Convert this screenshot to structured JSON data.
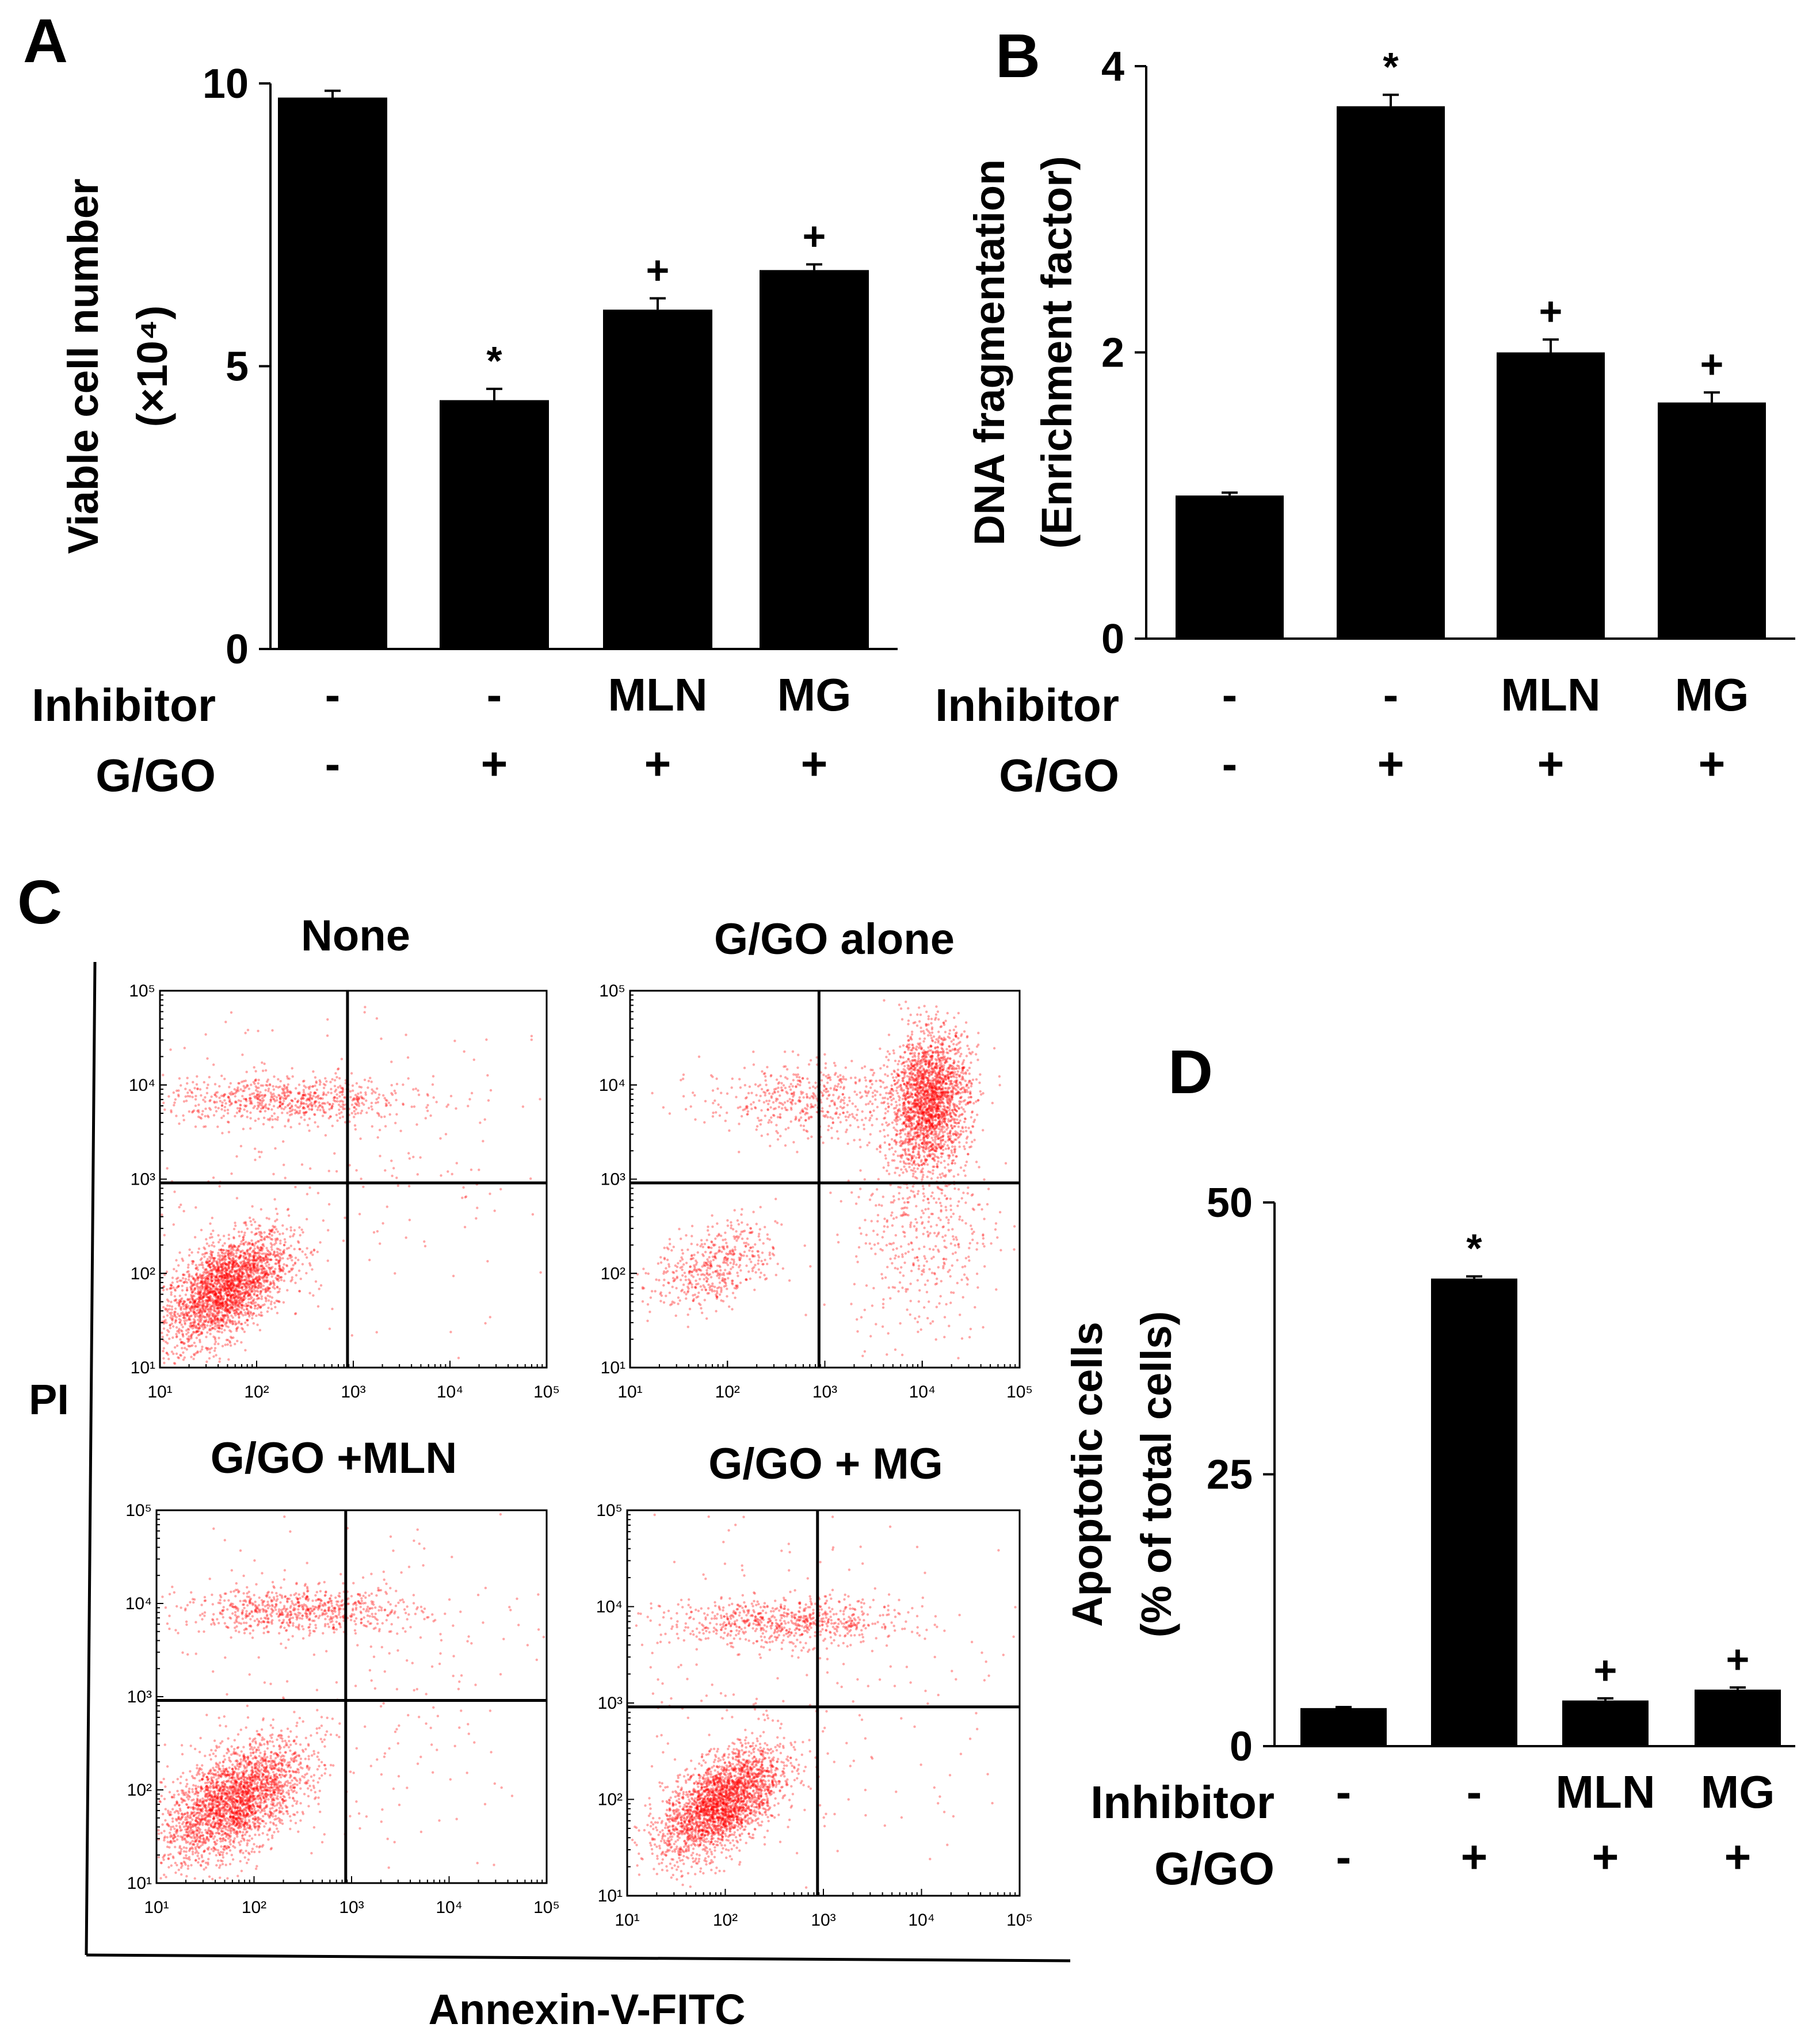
{
  "panels": {
    "a": {
      "label": "A"
    },
    "b": {
      "label": "B"
    },
    "c": {
      "label": "C"
    },
    "d": {
      "label": "D"
    }
  },
  "flow": {
    "x_axis_label": "Annexin-V-FITC",
    "y_axis_label": "PI",
    "tick_labels": [
      "10¹",
      "10²",
      "10³",
      "10⁴",
      "10⁵"
    ],
    "plots": [
      {
        "title": "None"
      },
      {
        "title": "G/GO alone"
      },
      {
        "title": "G/GO +MLN"
      },
      {
        "title": "G/GO + MG"
      }
    ],
    "dot_color": "#ff0000"
  },
  "chart_data": [
    {
      "panel": "A",
      "type": "bar",
      "ylabel_line1": "Viable cell number",
      "ylabel_line2": "(×10⁴)",
      "ylim": [
        0,
        10
      ],
      "yticks": [
        "0",
        "5",
        "10"
      ],
      "values": [
        9.75,
        4.4,
        6.0,
        6.7
      ],
      "errors": [
        0.12,
        0.2,
        0.2,
        0.1
      ],
      "significance": [
        "",
        "*",
        "+",
        "+"
      ],
      "conditions": {
        "row1_label": "Inhibitor",
        "row1": [
          "-",
          "-",
          "MLN",
          "MG"
        ],
        "row2_label": "G/GO",
        "row2": [
          "-",
          "+",
          "+",
          "+"
        ]
      }
    },
    {
      "panel": "B",
      "type": "bar",
      "ylabel_line1": "DNA fragmentation",
      "ylabel_line2": "(Enrichment factor)",
      "ylim": [
        0,
        4
      ],
      "yticks": [
        "0",
        "2",
        "4"
      ],
      "values": [
        1.0,
        3.72,
        2.0,
        1.65
      ],
      "errors": [
        0.02,
        0.08,
        0.09,
        0.07
      ],
      "significance": [
        "",
        "*",
        "+",
        "+"
      ],
      "conditions": {
        "row1_label": "Inhibitor",
        "row1": [
          "-",
          "-",
          "MLN",
          "MG"
        ],
        "row2_label": "G/GO",
        "row2": [
          "-",
          "+",
          "+",
          "+"
        ]
      }
    },
    {
      "panel": "D",
      "type": "bar",
      "ylabel_line1": "Apoptotic  cells",
      "ylabel_line2": "(% of total cells)",
      "ylim": [
        0,
        50
      ],
      "yticks": [
        "0",
        "25",
        "50"
      ],
      "values": [
        3.5,
        43.0,
        4.2,
        5.2
      ],
      "errors": [
        0.1,
        0.2,
        0.2,
        0.2
      ],
      "significance": [
        "",
        "*",
        "+",
        "+"
      ],
      "conditions": {
        "row1_label": "Inhibitor",
        "row1": [
          "-",
          "-",
          "MLN",
          "MG"
        ],
        "row2_label": "G/GO",
        "row2": [
          "-",
          "+",
          "+",
          "+"
        ]
      }
    }
  ]
}
